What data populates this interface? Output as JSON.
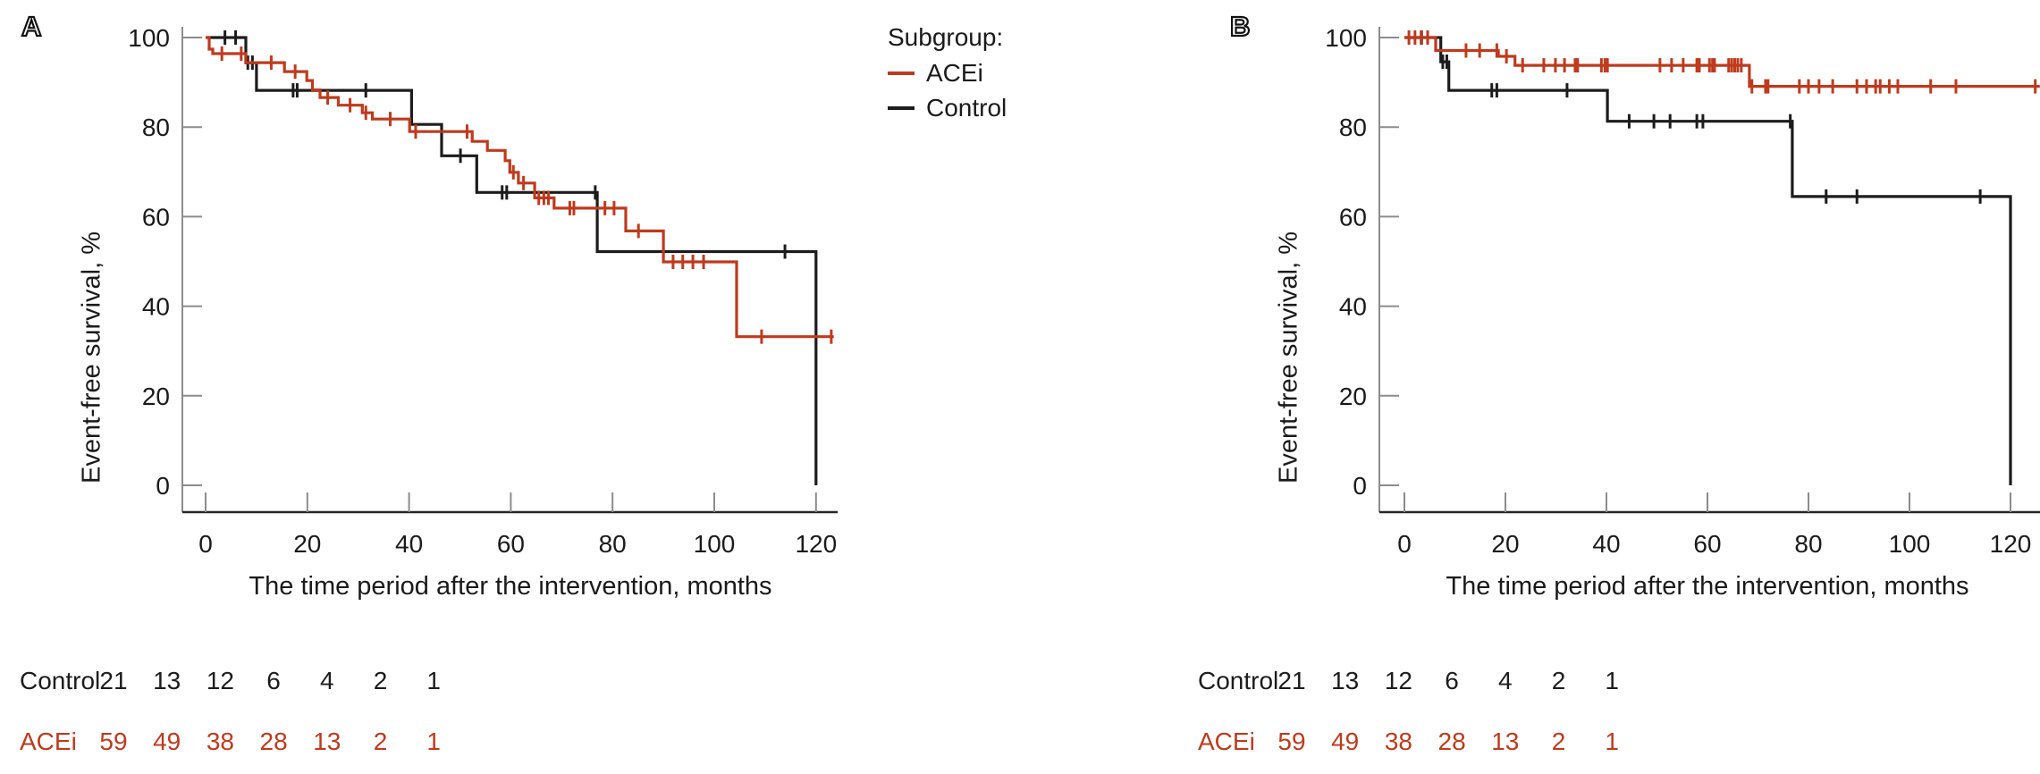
{
  "colors": {
    "acei": "#bf3a1d",
    "control": "#1c1c1c",
    "axis_gray": "#8c8c8c",
    "axis_dark": "#262626",
    "text": "#1a1a1a"
  },
  "legend": {
    "title": "Subgroup:",
    "items": [
      {
        "label": "ACEi",
        "series": "acei"
      },
      {
        "label": "Control",
        "series": "control"
      }
    ]
  },
  "panels": [
    {
      "label": "A",
      "risk_table": {
        "rows": [
          {
            "name": "Control",
            "series": "control",
            "values": [
              "21",
              "13",
              "12",
              "6",
              "4",
              "2",
              "1"
            ]
          },
          {
            "name": "ACEi",
            "series": "acei",
            "values": [
              "59",
              "49",
              "38",
              "28",
              "13",
              "2",
              "1"
            ]
          }
        ]
      }
    },
    {
      "label": "B",
      "risk_table": {
        "rows": [
          {
            "name": "Control",
            "series": "control",
            "values": [
              "21",
              "13",
              "12",
              "6",
              "4",
              "2",
              "1"
            ]
          },
          {
            "name": "ACEi",
            "series": "acei",
            "values": [
              "59",
              "49",
              "38",
              "28",
              "13",
              "2",
              "1"
            ]
          }
        ]
      }
    }
  ],
  "chart_data": [
    {
      "type": "line",
      "subtype": "kaplan-meier-step",
      "panel": "A",
      "xlabel": "The time period after the intervention, months",
      "ylabel": "Event-free survival, %",
      "xlim": [
        0,
        124
      ],
      "ylim": [
        0,
        100
      ],
      "x_ticks": [
        0,
        20,
        40,
        60,
        80,
        100,
        120
      ],
      "y_ticks": [
        0,
        20,
        40,
        60,
        80,
        100
      ],
      "grid": false,
      "legend_position": "top-right-outside",
      "series": [
        {
          "name": "Control",
          "color_key": "control",
          "end_month": 120,
          "steps": [
            [
              0,
              100
            ],
            [
              7.9,
              94.4
            ],
            [
              10,
              88.2
            ],
            [
              40.5,
              80.6
            ],
            [
              46.4,
              73.6
            ],
            [
              53.3,
              65.4
            ],
            [
              77,
              52.2
            ],
            [
              120,
              0
            ]
          ],
          "censors": [
            [
              3.8,
              100
            ],
            [
              5.9,
              100
            ],
            [
              8.3,
              94.4
            ],
            [
              9.2,
              94.4
            ],
            [
              17.2,
              88.2
            ],
            [
              18,
              88.2
            ],
            [
              31.5,
              88.2
            ],
            [
              50.1,
              73.6
            ],
            [
              58.3,
              65.4
            ],
            [
              59.2,
              65.4
            ],
            [
              76.6,
              65.4
            ],
            [
              113.9,
              52.2
            ]
          ]
        },
        {
          "name": "ACEi",
          "color_key": "acei",
          "end_month": 123.5,
          "steps": [
            [
              0,
              100
            ],
            [
              0.7,
              97.4
            ],
            [
              1.4,
              96.4
            ],
            [
              7.9,
              94.4
            ],
            [
              15.5,
              92.4
            ],
            [
              19.9,
              90.4
            ],
            [
              21,
              88.3
            ],
            [
              22.5,
              86.6
            ],
            [
              26.1,
              84.9
            ],
            [
              30.8,
              83.2
            ],
            [
              32.8,
              81.8
            ],
            [
              40.1,
              79.0
            ],
            [
              52.4,
              76.8
            ],
            [
              55.4,
              74.8
            ],
            [
              58.9,
              72.5
            ],
            [
              59.8,
              69.9
            ],
            [
              61.5,
              67.5
            ],
            [
              64.7,
              64.2
            ],
            [
              68.5,
              61.9
            ],
            [
              82.6,
              56.8
            ],
            [
              90,
              49.9
            ],
            [
              104.4,
              33.2
            ]
          ],
          "censors": [
            [
              3.2,
              96.4
            ],
            [
              7,
              96.4
            ],
            [
              12.9,
              94.4
            ],
            [
              17.6,
              92.4
            ],
            [
              24,
              86.6
            ],
            [
              28.4,
              84.9
            ],
            [
              31.5,
              83.2
            ],
            [
              36.3,
              81.8
            ],
            [
              41.3,
              79.0
            ],
            [
              51.4,
              79.0
            ],
            [
              60.5,
              69.9
            ],
            [
              62.5,
              67.5
            ],
            [
              65.5,
              64.2
            ],
            [
              66.5,
              64.2
            ],
            [
              67.4,
              64.2
            ],
            [
              71.6,
              61.9
            ],
            [
              72.4,
              61.9
            ],
            [
              78.5,
              61.9
            ],
            [
              80.3,
              61.9
            ],
            [
              85.1,
              56.8
            ],
            [
              91.9,
              49.9
            ],
            [
              93.8,
              49.9
            ],
            [
              95.8,
              49.9
            ],
            [
              97.9,
              49.9
            ],
            [
              109.3,
              33.2
            ],
            [
              123,
              33.2
            ]
          ]
        }
      ]
    },
    {
      "type": "line",
      "subtype": "kaplan-meier-step",
      "panel": "B",
      "xlabel": "The time period after the intervention, months",
      "ylabel": "Event-free survival, %",
      "xlim": [
        0,
        126
      ],
      "ylim": [
        0,
        100
      ],
      "x_ticks": [
        0,
        20,
        40,
        60,
        80,
        100,
        120
      ],
      "y_ticks": [
        0,
        20,
        40,
        60,
        80,
        100
      ],
      "grid": false,
      "legend_position": "none",
      "series": [
        {
          "name": "Control",
          "color_key": "control",
          "end_month": 120,
          "steps": [
            [
              0,
              100
            ],
            [
              7.2,
              94.6
            ],
            [
              8.8,
              88.2
            ],
            [
              40.2,
              81.3
            ],
            [
              76.8,
              64.5
            ],
            [
              120,
              0
            ]
          ],
          "censors": [
            [
              3.4,
              100
            ],
            [
              7.6,
              94.6
            ],
            [
              8.4,
              94.6
            ],
            [
              17.3,
              88.2
            ],
            [
              18.3,
              88.2
            ],
            [
              32.2,
              88.2
            ],
            [
              44.5,
              81.3
            ],
            [
              49.4,
              81.3
            ],
            [
              52.6,
              81.3
            ],
            [
              57.9,
              81.3
            ],
            [
              59.1,
              81.3
            ],
            [
              76.4,
              81.3
            ],
            [
              83.5,
              64.5
            ],
            [
              89.6,
              64.5
            ],
            [
              114,
              64.5
            ]
          ]
        },
        {
          "name": "ACEi",
          "color_key": "acei",
          "end_month": 125.8,
          "steps": [
            [
              0,
              100
            ],
            [
              6.2,
              97.1
            ],
            [
              18.6,
              95.8
            ],
            [
              21.9,
              93.8
            ],
            [
              68.3,
              89.1
            ]
          ],
          "censors": [
            [
              0.9,
              100
            ],
            [
              2.1,
              100
            ],
            [
              3.3,
              100
            ],
            [
              4.6,
              100
            ],
            [
              12.2,
              97.1
            ],
            [
              14.9,
              97.1
            ],
            [
              18.3,
              97.1
            ],
            [
              20.2,
              95.8
            ],
            [
              23.4,
              93.8
            ],
            [
              27.6,
              93.8
            ],
            [
              29.9,
              93.8
            ],
            [
              31.7,
              93.8
            ],
            [
              33.8,
              93.8
            ],
            [
              34.3,
              93.8
            ],
            [
              39.0,
              93.8
            ],
            [
              39.7,
              93.8
            ],
            [
              40.2,
              93.8
            ],
            [
              50.6,
              93.8
            ],
            [
              52.9,
              93.8
            ],
            [
              55.2,
              93.8
            ],
            [
              57.9,
              93.8
            ],
            [
              58.4,
              93.8
            ],
            [
              60.4,
              93.8
            ],
            [
              61.0,
              93.8
            ],
            [
              61.4,
              93.8
            ],
            [
              64.2,
              93.8
            ],
            [
              64.8,
              93.8
            ],
            [
              65.4,
              93.8
            ],
            [
              66.0,
              93.8
            ],
            [
              66.7,
              93.8
            ],
            [
              68.8,
              89.1
            ],
            [
              71.5,
              89.1
            ],
            [
              72.0,
              89.1
            ],
            [
              78.2,
              89.1
            ],
            [
              80.0,
              89.1
            ],
            [
              82.1,
              89.1
            ],
            [
              84.8,
              89.1
            ],
            [
              89.6,
              89.1
            ],
            [
              91.5,
              89.1
            ],
            [
              93.3,
              89.1
            ],
            [
              94.2,
              89.1
            ],
            [
              96.0,
              89.1
            ],
            [
              97.7,
              89.1
            ],
            [
              104.2,
              89.1
            ],
            [
              109.2,
              89.1
            ],
            [
              124.9,
              89.1
            ]
          ]
        }
      ]
    }
  ]
}
